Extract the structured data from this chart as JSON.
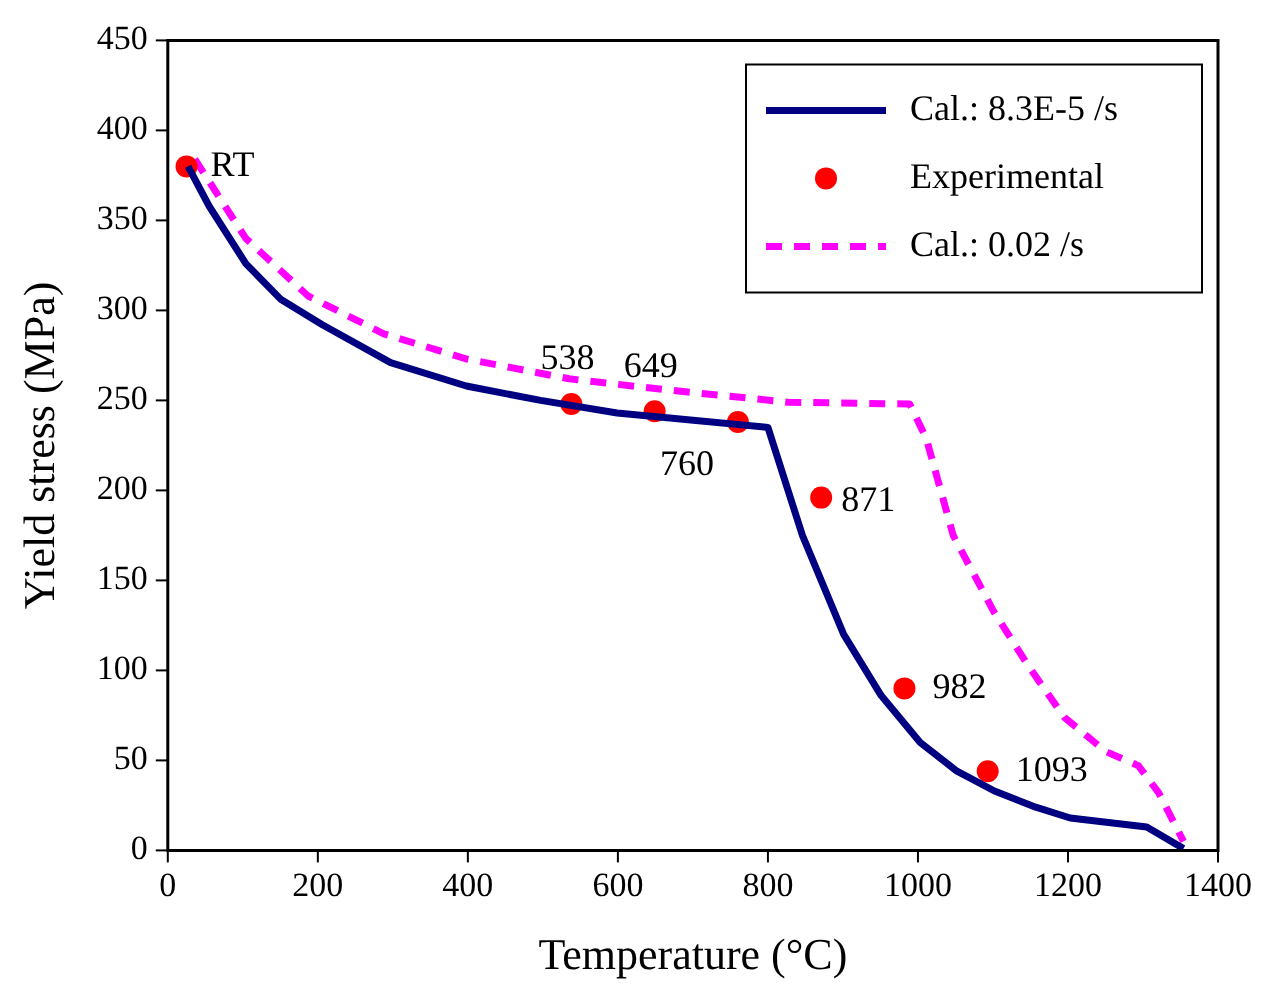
{
  "chart_data": {
    "type": "line",
    "xlabel": "Temperature (°C)",
    "ylabel": "Yield stress (MPa)",
    "xlim": [
      0,
      1400
    ],
    "ylim": [
      0,
      450
    ],
    "xticks": [
      0,
      200,
      400,
      600,
      800,
      1000,
      1200,
      1400
    ],
    "yticks": [
      0,
      50,
      100,
      150,
      200,
      250,
      300,
      350,
      400,
      450
    ],
    "grid": false,
    "legend": "top right",
    "series": [
      {
        "name": "Cal.: 8.3E-5 /s",
        "type": "line",
        "color": "#000080",
        "line_style": "solid",
        "marker": "none",
        "x": [
          27,
          55,
          104,
          151,
          206,
          297,
          398,
          497,
          599,
          800,
          846,
          901,
          951,
          1003,
          1052,
          1102,
          1157,
          1203,
          1305,
          1354
        ],
        "values": [
          380,
          358,
          326,
          306,
          292,
          271,
          258,
          250,
          243,
          235,
          175,
          120,
          86,
          60,
          44,
          33,
          24,
          18,
          13,
          1
        ]
      },
      {
        "name": "Experimental",
        "type": "scatter",
        "color": "#ff0000",
        "marker": "circle",
        "x": [
          25,
          538,
          649,
          760,
          871,
          982,
          1093
        ],
        "values": [
          380,
          248,
          244,
          238,
          196,
          90,
          44
        ]
      },
      {
        "name": "Cal.: 0.02 /s",
        "type": "line",
        "color": "#ff00ff",
        "line_style": "dashed",
        "marker": "none",
        "x": [
          36,
          104,
          187,
          288,
          398,
          535,
          662,
          827,
          989,
          1011,
          1047,
          1102,
          1148,
          1195,
          1250,
          1294,
          1321,
          1354
        ],
        "values": [
          384,
          340,
          308,
          287,
          273,
          262,
          256,
          249,
          248,
          229,
          175,
          132,
          102,
          74,
          55,
          47,
          32,
          5
        ]
      }
    ],
    "annotations": [
      {
        "text": "RT",
        "x": 25,
        "y": 380
      },
      {
        "text": "538",
        "x": 538,
        "y": 248
      },
      {
        "text": "649",
        "x": 649,
        "y": 244
      },
      {
        "text": "760",
        "x": 760,
        "y": 238
      },
      {
        "text": "871",
        "x": 871,
        "y": 196
      },
      {
        "text": "982",
        "x": 982,
        "y": 90
      },
      {
        "text": "1093",
        "x": 1093,
        "y": 44
      }
    ]
  }
}
